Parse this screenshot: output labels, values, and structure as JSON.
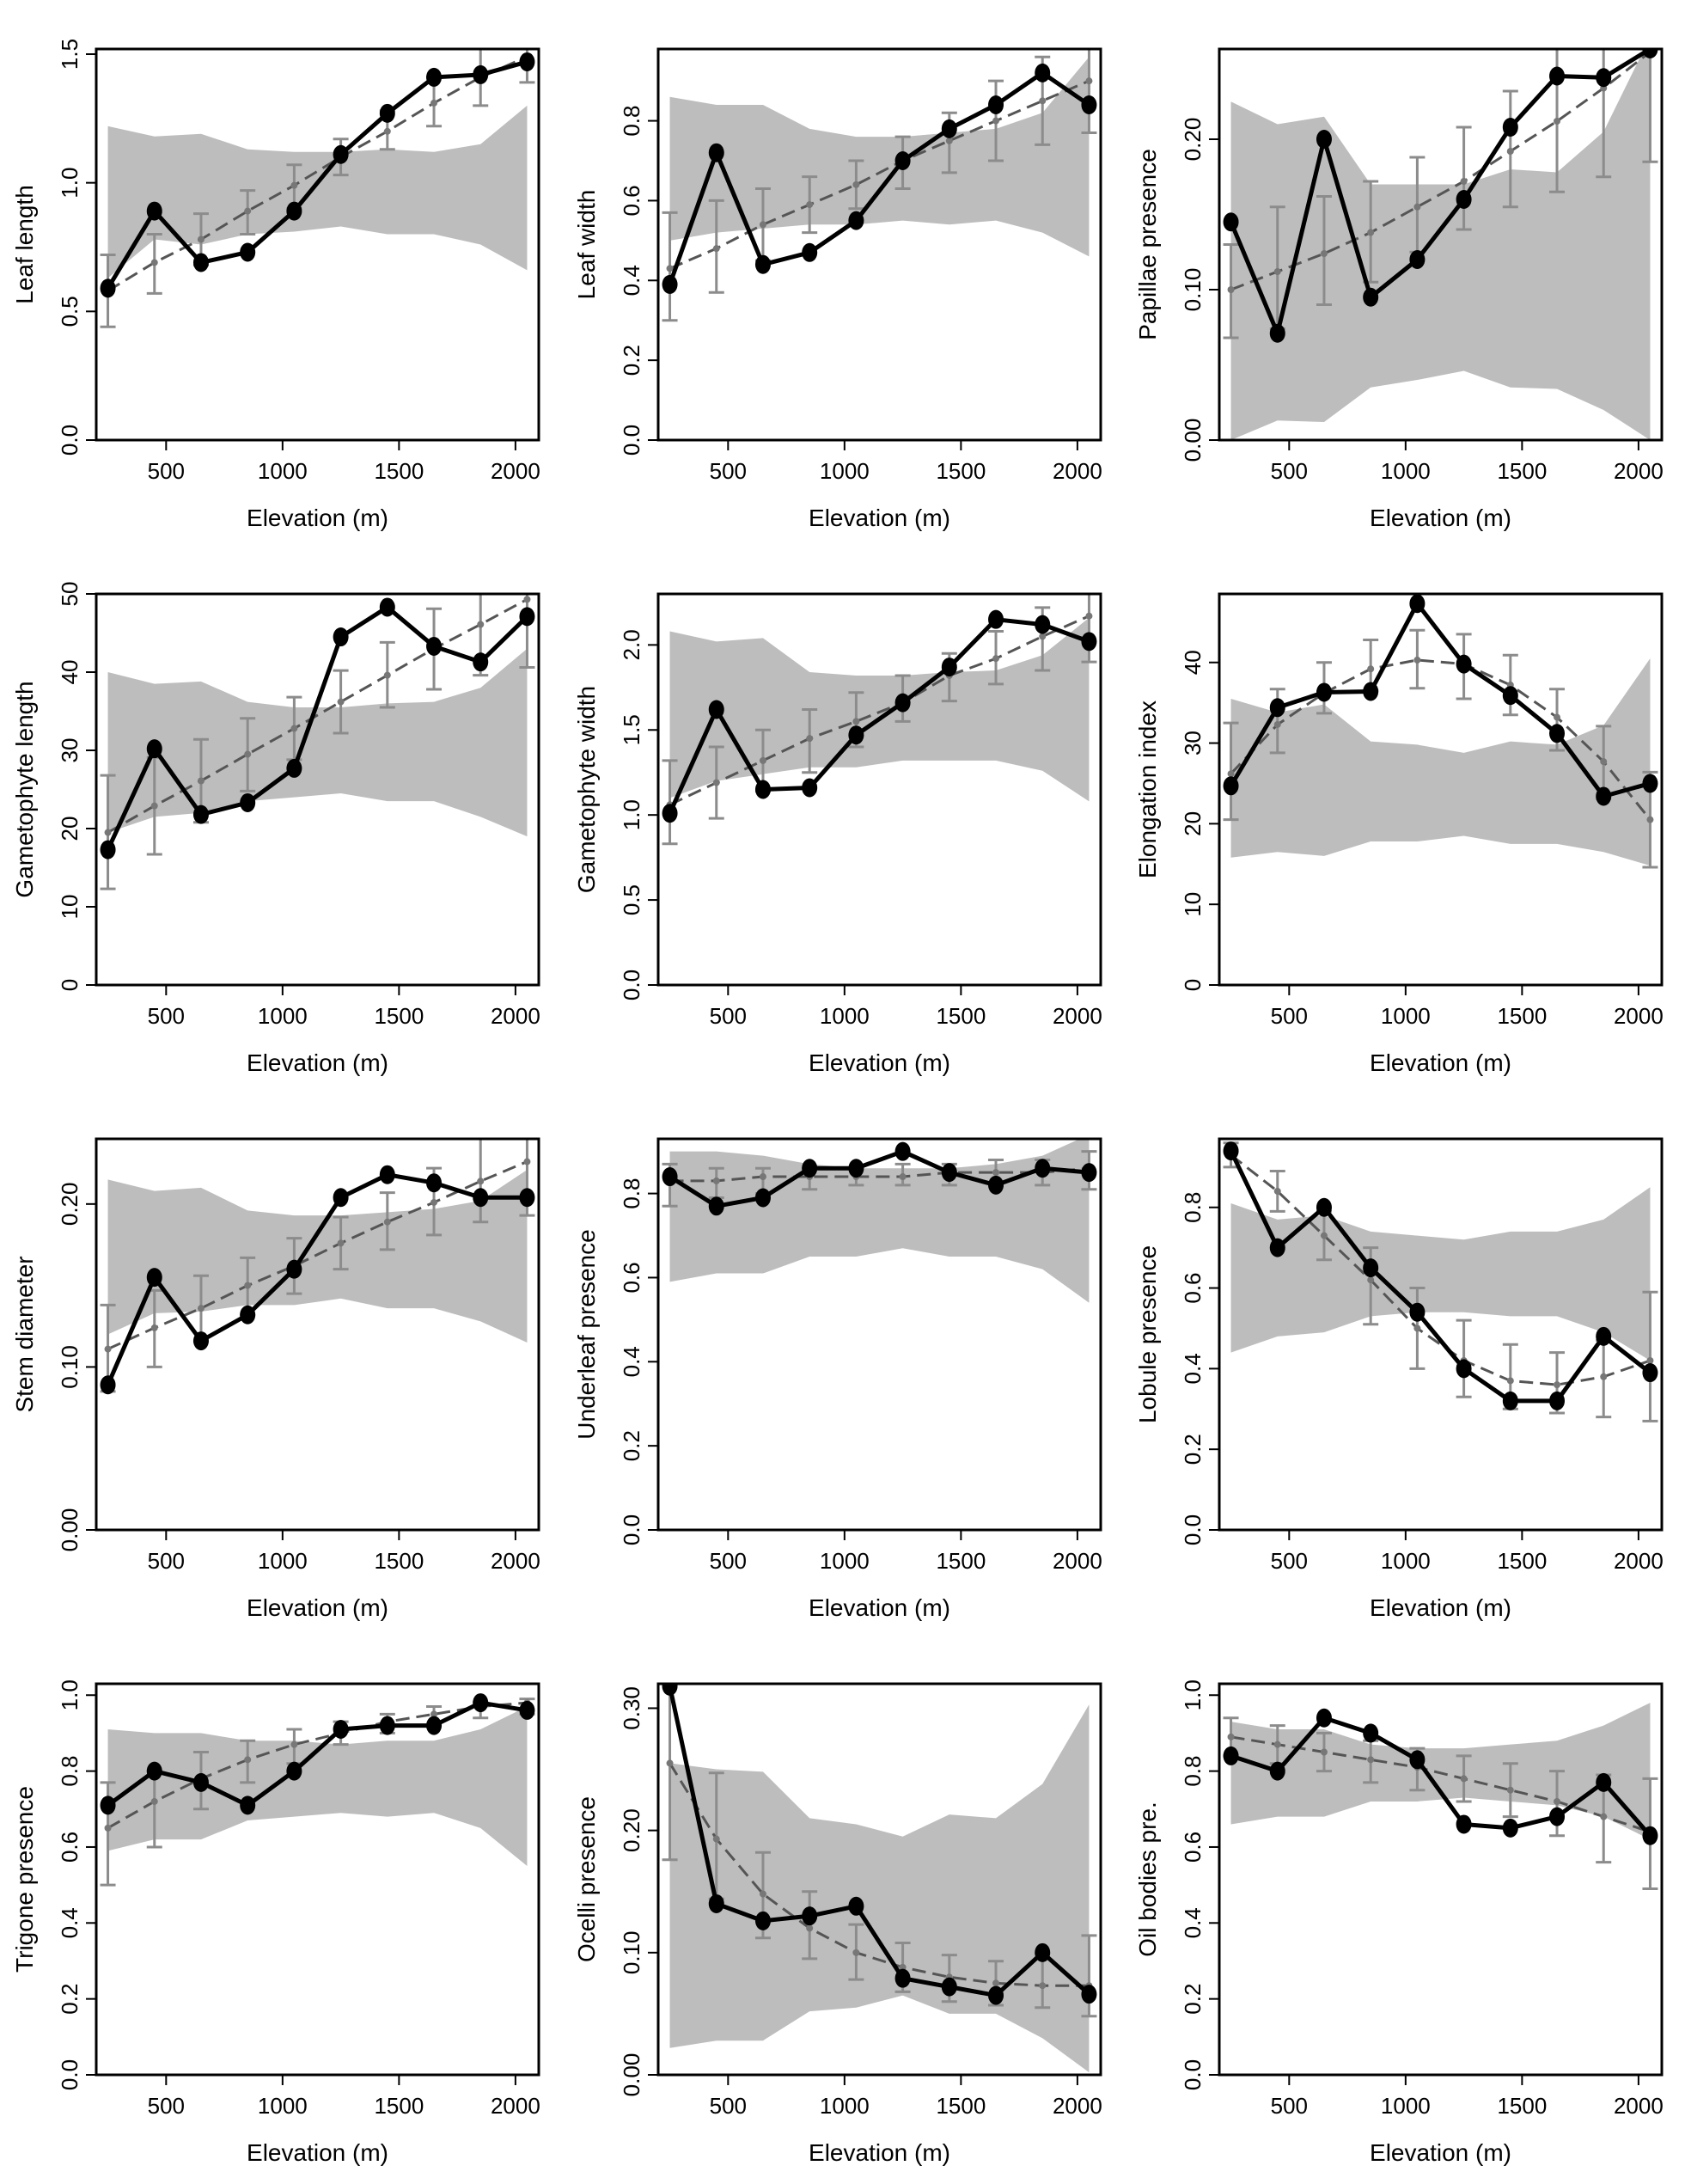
{
  "figure": {
    "x_tick_labels": [
      "500",
      "1000",
      "1500",
      "2000"
    ],
    "colors": {
      "band": "#bdbdbd",
      "observed": "#000000",
      "predicted": "#555555",
      "errorbar": "#8c8c8c",
      "frame": "#000000"
    }
  },
  "chart_data": [
    {
      "type": "line",
      "xlabel": "Elevation (m)",
      "ylabel": "Leaf length",
      "xlim": [
        200,
        2100
      ],
      "ylim": [
        0,
        1.52
      ],
      "yticks": [
        0,
        0.5,
        1.0,
        1.5
      ],
      "ytick_labels": [
        "0.0",
        "0.5",
        "1.0",
        "1.5"
      ],
      "x": [
        250,
        450,
        650,
        850,
        1050,
        1250,
        1450,
        1650,
        1850,
        2050
      ],
      "observed": [
        0.59,
        0.89,
        0.69,
        0.73,
        0.89,
        1.11,
        1.27,
        1.41,
        1.42,
        1.47
      ],
      "predicted": [
        0.58,
        0.69,
        0.78,
        0.89,
        0.99,
        1.1,
        1.2,
        1.31,
        1.41,
        1.49
      ],
      "err_low": [
        0.44,
        0.57,
        0.68,
        0.8,
        0.9,
        1.03,
        1.13,
        1.22,
        1.3,
        1.39
      ],
      "err_high": [
        0.72,
        0.8,
        0.88,
        0.97,
        1.07,
        1.17,
        1.28,
        1.41,
        1.52,
        1.57
      ],
      "band_low": [
        0.63,
        0.78,
        0.76,
        0.8,
        0.81,
        0.83,
        0.8,
        0.8,
        0.76,
        0.66
      ],
      "band_high": [
        1.22,
        1.18,
        1.19,
        1.13,
        1.12,
        1.12,
        1.13,
        1.12,
        1.15,
        1.3
      ]
    },
    {
      "type": "line",
      "xlabel": "Elevation (m)",
      "ylabel": "Leaf width",
      "xlim": [
        200,
        2100
      ],
      "ylim": [
        0,
        0.98
      ],
      "yticks": [
        0,
        0.2,
        0.4,
        0.6,
        0.8
      ],
      "ytick_labels": [
        "0.0",
        "0.2",
        "0.4",
        "0.6",
        "0.8"
      ],
      "x": [
        250,
        450,
        650,
        850,
        1050,
        1250,
        1450,
        1650,
        1850,
        2050
      ],
      "observed": [
        0.39,
        0.72,
        0.44,
        0.47,
        0.55,
        0.7,
        0.78,
        0.84,
        0.92,
        0.84
      ],
      "predicted": [
        0.43,
        0.48,
        0.54,
        0.59,
        0.64,
        0.7,
        0.75,
        0.8,
        0.85,
        0.9
      ],
      "err_low": [
        0.3,
        0.37,
        0.45,
        0.52,
        0.58,
        0.63,
        0.67,
        0.7,
        0.74,
        0.77
      ],
      "err_high": [
        0.57,
        0.6,
        0.63,
        0.66,
        0.7,
        0.76,
        0.82,
        0.9,
        0.96,
        1.03
      ],
      "band_low": [
        0.5,
        0.52,
        0.53,
        0.54,
        0.54,
        0.55,
        0.54,
        0.55,
        0.52,
        0.46
      ],
      "band_high": [
        0.86,
        0.84,
        0.84,
        0.78,
        0.76,
        0.76,
        0.77,
        0.78,
        0.82,
        0.96
      ]
    },
    {
      "type": "line",
      "xlabel": "Elevation (m)",
      "ylabel": "Papillae presence",
      "xlim": [
        200,
        2100
      ],
      "ylim": [
        0,
        0.26
      ],
      "yticks": [
        0,
        0.1,
        0.2
      ],
      "ytick_labels": [
        "0.00",
        "0.10",
        "0.20"
      ],
      "x": [
        250,
        450,
        650,
        850,
        1050,
        1250,
        1450,
        1650,
        1850,
        2050
      ],
      "observed": [
        0.145,
        0.071,
        0.2,
        0.095,
        0.12,
        0.16,
        0.208,
        0.242,
        0.241,
        0.26
      ],
      "predicted": [
        0.1,
        0.112,
        0.124,
        0.138,
        0.155,
        0.172,
        0.192,
        0.212,
        0.234,
        0.258
      ],
      "err_low": [
        0.068,
        0.074,
        0.09,
        0.105,
        0.125,
        0.14,
        0.155,
        0.165,
        0.175,
        0.185
      ],
      "err_high": [
        0.13,
        0.155,
        0.162,
        0.172,
        0.188,
        0.208,
        0.232,
        0.265,
        0.272,
        0.28
      ],
      "band_low": [
        0.0,
        0.013,
        0.012,
        0.035,
        0.04,
        0.046,
        0.035,
        0.034,
        0.02,
        0.0
      ],
      "band_high": [
        0.225,
        0.21,
        0.215,
        0.17,
        0.17,
        0.17,
        0.18,
        0.178,
        0.205,
        0.268
      ]
    },
    {
      "type": "line",
      "xlabel": "Elevation (m)",
      "ylabel": "Gametophyte length",
      "xlim": [
        200,
        2100
      ],
      "ylim": [
        0,
        50
      ],
      "yticks": [
        0,
        10,
        20,
        30,
        40,
        50
      ],
      "ytick_labels": [
        "0",
        "10",
        "20",
        "30",
        "40",
        "50"
      ],
      "x": [
        250,
        450,
        650,
        850,
        1050,
        1250,
        1450,
        1650,
        1850,
        2050
      ],
      "observed": [
        17.3,
        30.2,
        21.8,
        23.3,
        27.7,
        44.5,
        48.3,
        43.3,
        41.3,
        47.1
      ],
      "predicted": [
        19.5,
        22.9,
        26.1,
        29.5,
        32.8,
        36.2,
        39.6,
        43.0,
        46.1,
        49.3
      ],
      "err_low": [
        12.3,
        16.7,
        20.8,
        24.8,
        28.8,
        32.2,
        35.5,
        37.8,
        39.6,
        40.6
      ],
      "err_high": [
        26.8,
        29.1,
        31.4,
        34.1,
        36.8,
        40.2,
        43.8,
        48.1,
        52.7,
        58.0
      ],
      "band_low": [
        19.5,
        21.5,
        22.0,
        23.5,
        24.0,
        24.5,
        23.5,
        23.5,
        21.5,
        19.0
      ],
      "band_high": [
        40.0,
        38.5,
        38.8,
        36.2,
        35.5,
        35.5,
        36.0,
        36.2,
        38.0,
        43.0
      ]
    },
    {
      "type": "line",
      "xlabel": "Elevation (m)",
      "ylabel": "Gametophyte width",
      "xlim": [
        200,
        2100
      ],
      "ylim": [
        0,
        2.3
      ],
      "yticks": [
        0,
        0.5,
        1.0,
        1.5,
        2.0
      ],
      "ytick_labels": [
        "0.0",
        "0.5",
        "1.0",
        "1.5",
        "2.0"
      ],
      "x": [
        250,
        450,
        650,
        850,
        1050,
        1250,
        1450,
        1650,
        1850,
        2050
      ],
      "observed": [
        1.01,
        1.62,
        1.15,
        1.16,
        1.47,
        1.66,
        1.87,
        2.15,
        2.12,
        2.02
      ],
      "predicted": [
        1.06,
        1.19,
        1.32,
        1.45,
        1.55,
        1.66,
        1.82,
        1.92,
        2.05,
        2.17
      ],
      "err_low": [
        0.83,
        0.98,
        1.14,
        1.25,
        1.4,
        1.55,
        1.67,
        1.77,
        1.85,
        1.9
      ],
      "err_high": [
        1.32,
        1.4,
        1.5,
        1.62,
        1.72,
        1.82,
        1.95,
        2.08,
        2.22,
        2.37
      ],
      "band_low": [
        1.1,
        1.2,
        1.24,
        1.28,
        1.28,
        1.32,
        1.32,
        1.32,
        1.26,
        1.08
      ],
      "band_high": [
        2.08,
        2.02,
        2.04,
        1.84,
        1.82,
        1.82,
        1.84,
        1.85,
        1.94,
        2.16
      ]
    },
    {
      "type": "line",
      "xlabel": "Elevation (m)",
      "ylabel": "Elongation index",
      "xlim": [
        200,
        2100
      ],
      "ylim": [
        0,
        48.5
      ],
      "yticks": [
        0,
        10,
        20,
        30,
        40
      ],
      "ytick_labels": [
        "0",
        "10",
        "20",
        "30",
        "40"
      ],
      "x": [
        250,
        450,
        650,
        850,
        1050,
        1250,
        1450,
        1650,
        1850,
        2050
      ],
      "observed": [
        24.7,
        34.4,
        36.3,
        36.4,
        47.3,
        39.8,
        35.9,
        31.2,
        23.4,
        25.0
      ],
      "predicted": [
        26.2,
        32.3,
        36.2,
        39.2,
        40.3,
        39.8,
        37.2,
        33.2,
        27.7,
        20.5
      ],
      "err_low": [
        20.5,
        28.8,
        33.7,
        36.5,
        36.8,
        35.5,
        33.5,
        29.1,
        23.1,
        14.6
      ],
      "err_high": [
        32.5,
        36.7,
        40.0,
        42.8,
        44.0,
        43.5,
        40.9,
        36.7,
        32.1,
        26.4
      ],
      "band_low": [
        15.8,
        16.5,
        16.0,
        17.8,
        17.8,
        18.5,
        17.5,
        17.5,
        16.5,
        14.8
      ],
      "band_high": [
        35.5,
        33.8,
        34.8,
        30.2,
        29.8,
        28.8,
        30.2,
        29.8,
        32.2,
        40.5
      ]
    },
    {
      "type": "line",
      "xlabel": "Elevation (m)",
      "ylabel": "Stem diameter",
      "xlim": [
        200,
        2100
      ],
      "ylim": [
        0,
        0.24
      ],
      "yticks": [
        0,
        0.1,
        0.2
      ],
      "ytick_labels": [
        "0.00",
        "0.10",
        "0.20"
      ],
      "x": [
        250,
        450,
        650,
        850,
        1050,
        1250,
        1450,
        1650,
        1850,
        2050
      ],
      "observed": [
        0.089,
        0.155,
        0.116,
        0.132,
        0.16,
        0.204,
        0.218,
        0.213,
        0.204,
        0.204
      ],
      "predicted": [
        0.111,
        0.124,
        0.136,
        0.15,
        0.162,
        0.176,
        0.189,
        0.201,
        0.214,
        0.226
      ],
      "err_low": [
        0.085,
        0.1,
        0.116,
        0.132,
        0.145,
        0.16,
        0.172,
        0.181,
        0.189,
        0.193
      ],
      "err_high": [
        0.138,
        0.147,
        0.156,
        0.167,
        0.179,
        0.192,
        0.207,
        0.222,
        0.24,
        0.261
      ],
      "band_low": [
        0.12,
        0.133,
        0.134,
        0.138,
        0.138,
        0.142,
        0.136,
        0.136,
        0.128,
        0.115
      ],
      "band_high": [
        0.215,
        0.208,
        0.21,
        0.196,
        0.193,
        0.193,
        0.195,
        0.197,
        0.202,
        0.221
      ]
    },
    {
      "type": "line",
      "xlabel": "Elevation (m)",
      "ylabel": "Underleaf presence",
      "xlim": [
        200,
        2100
      ],
      "ylim": [
        0,
        0.93
      ],
      "yticks": [
        0,
        0.2,
        0.4,
        0.6,
        0.8
      ],
      "ytick_labels": [
        "0.0",
        "0.2",
        "0.4",
        "0.6",
        "0.8"
      ],
      "x": [
        250,
        450,
        650,
        850,
        1050,
        1250,
        1450,
        1650,
        1850,
        2050
      ],
      "observed": [
        0.84,
        0.77,
        0.79,
        0.86,
        0.86,
        0.9,
        0.85,
        0.82,
        0.86,
        0.85
      ],
      "predicted": [
        0.83,
        0.83,
        0.84,
        0.84,
        0.84,
        0.84,
        0.85,
        0.85,
        0.85,
        0.86
      ],
      "err_low": [
        0.77,
        0.79,
        0.8,
        0.81,
        0.82,
        0.82,
        0.82,
        0.82,
        0.82,
        0.81
      ],
      "err_high": [
        0.87,
        0.86,
        0.86,
        0.86,
        0.86,
        0.87,
        0.87,
        0.88,
        0.88,
        0.9
      ],
      "band_low": [
        0.59,
        0.61,
        0.61,
        0.65,
        0.65,
        0.67,
        0.65,
        0.65,
        0.62,
        0.54
      ],
      "band_high": [
        0.9,
        0.9,
        0.89,
        0.87,
        0.86,
        0.86,
        0.86,
        0.87,
        0.89,
        0.94
      ]
    },
    {
      "type": "line",
      "xlabel": "Elevation (m)",
      "ylabel": "Lobule presence",
      "xlim": [
        200,
        2100
      ],
      "ylim": [
        0,
        0.97
      ],
      "yticks": [
        0,
        0.2,
        0.4,
        0.6,
        0.8
      ],
      "ytick_labels": [
        "0.0",
        "0.2",
        "0.4",
        "0.6",
        "0.8"
      ],
      "x": [
        250,
        450,
        650,
        850,
        1050,
        1250,
        1450,
        1650,
        1850,
        2050
      ],
      "observed": [
        0.94,
        0.7,
        0.8,
        0.65,
        0.54,
        0.4,
        0.32,
        0.32,
        0.48,
        0.39
      ],
      "predicted": [
        0.93,
        0.84,
        0.73,
        0.62,
        0.5,
        0.42,
        0.37,
        0.36,
        0.38,
        0.42
      ],
      "err_low": [
        0.9,
        0.79,
        0.67,
        0.51,
        0.4,
        0.33,
        0.3,
        0.29,
        0.28,
        0.27
      ],
      "err_high": [
        0.96,
        0.89,
        0.79,
        0.7,
        0.6,
        0.52,
        0.46,
        0.44,
        0.47,
        0.59
      ],
      "band_low": [
        0.44,
        0.48,
        0.49,
        0.53,
        0.54,
        0.54,
        0.53,
        0.53,
        0.49,
        0.42
      ],
      "band_high": [
        0.81,
        0.77,
        0.78,
        0.74,
        0.73,
        0.72,
        0.74,
        0.74,
        0.77,
        0.85
      ]
    },
    {
      "type": "line",
      "xlabel": "Elevation (m)",
      "ylabel": "Trigone presence",
      "xlim": [
        200,
        2100
      ],
      "ylim": [
        0,
        1.03
      ],
      "yticks": [
        0,
        0.2,
        0.4,
        0.6,
        0.8,
        1.0
      ],
      "ytick_labels": [
        "0.0",
        "0.2",
        "0.4",
        "0.6",
        "0.8",
        "1.0"
      ],
      "x": [
        250,
        450,
        650,
        850,
        1050,
        1250,
        1450,
        1650,
        1850,
        2050
      ],
      "observed": [
        0.71,
        0.8,
        0.77,
        0.71,
        0.8,
        0.91,
        0.92,
        0.92,
        0.98,
        0.96
      ],
      "predicted": [
        0.65,
        0.72,
        0.78,
        0.83,
        0.87,
        0.9,
        0.93,
        0.95,
        0.97,
        0.98
      ],
      "err_low": [
        0.5,
        0.6,
        0.7,
        0.77,
        0.82,
        0.87,
        0.9,
        0.92,
        0.94,
        0.95
      ],
      "err_high": [
        0.77,
        0.8,
        0.85,
        0.88,
        0.91,
        0.93,
        0.95,
        0.97,
        0.98,
        0.99
      ],
      "band_low": [
        0.59,
        0.62,
        0.62,
        0.67,
        0.68,
        0.69,
        0.68,
        0.69,
        0.65,
        0.55
      ],
      "band_high": [
        0.91,
        0.9,
        0.9,
        0.88,
        0.88,
        0.87,
        0.88,
        0.88,
        0.91,
        0.97
      ]
    },
    {
      "type": "line",
      "xlabel": "Elevation (m)",
      "ylabel": "Ocelli presence",
      "xlim": [
        200,
        2100
      ],
      "ylim": [
        0,
        0.32
      ],
      "yticks": [
        0,
        0.1,
        0.2,
        0.3
      ],
      "ytick_labels": [
        "0.00",
        "0.10",
        "0.20",
        "0.30"
      ],
      "x": [
        250,
        450,
        650,
        850,
        1050,
        1250,
        1450,
        1650,
        1850,
        2050
      ],
      "observed": [
        0.318,
        0.14,
        0.126,
        0.13,
        0.138,
        0.079,
        0.072,
        0.065,
        0.1,
        0.066
      ],
      "predicted": [
        0.255,
        0.193,
        0.148,
        0.12,
        0.1,
        0.088,
        0.08,
        0.075,
        0.073,
        0.073
      ],
      "err_low": [
        0.176,
        0.144,
        0.112,
        0.095,
        0.078,
        0.068,
        0.06,
        0.057,
        0.055,
        0.048
      ],
      "err_high": [
        0.32,
        0.247,
        0.182,
        0.15,
        0.123,
        0.108,
        0.098,
        0.093,
        0.095,
        0.114
      ],
      "band_low": [
        0.022,
        0.028,
        0.028,
        0.052,
        0.055,
        0.065,
        0.05,
        0.05,
        0.03,
        0.002
      ],
      "band_high": [
        0.255,
        0.25,
        0.248,
        0.21,
        0.205,
        0.195,
        0.213,
        0.21,
        0.238,
        0.303
      ]
    },
    {
      "type": "line",
      "xlabel": "Elevation (m)",
      "ylabel": "Oil bodies pre.",
      "xlim": [
        200,
        2100
      ],
      "ylim": [
        0,
        1.03
      ],
      "yticks": [
        0,
        0.2,
        0.4,
        0.6,
        0.8,
        1.0
      ],
      "ytick_labels": [
        "0.0",
        "0.2",
        "0.4",
        "0.6",
        "0.8",
        "1.0"
      ],
      "x": [
        250,
        450,
        650,
        850,
        1050,
        1250,
        1450,
        1650,
        1850,
        2050
      ],
      "observed": [
        0.84,
        0.8,
        0.94,
        0.9,
        0.83,
        0.66,
        0.65,
        0.68,
        0.77,
        0.63
      ],
      "predicted": [
        0.89,
        0.87,
        0.85,
        0.83,
        0.81,
        0.78,
        0.75,
        0.72,
        0.68,
        0.64
      ],
      "err_low": [
        0.84,
        0.82,
        0.8,
        0.77,
        0.75,
        0.72,
        0.68,
        0.63,
        0.56,
        0.49
      ],
      "err_high": [
        0.94,
        0.92,
        0.9,
        0.88,
        0.86,
        0.84,
        0.82,
        0.8,
        0.79,
        0.78
      ],
      "band_low": [
        0.66,
        0.68,
        0.68,
        0.72,
        0.72,
        0.73,
        0.72,
        0.71,
        0.68,
        0.62
      ],
      "band_high": [
        0.93,
        0.91,
        0.91,
        0.87,
        0.86,
        0.86,
        0.87,
        0.88,
        0.92,
        0.98
      ]
    }
  ]
}
